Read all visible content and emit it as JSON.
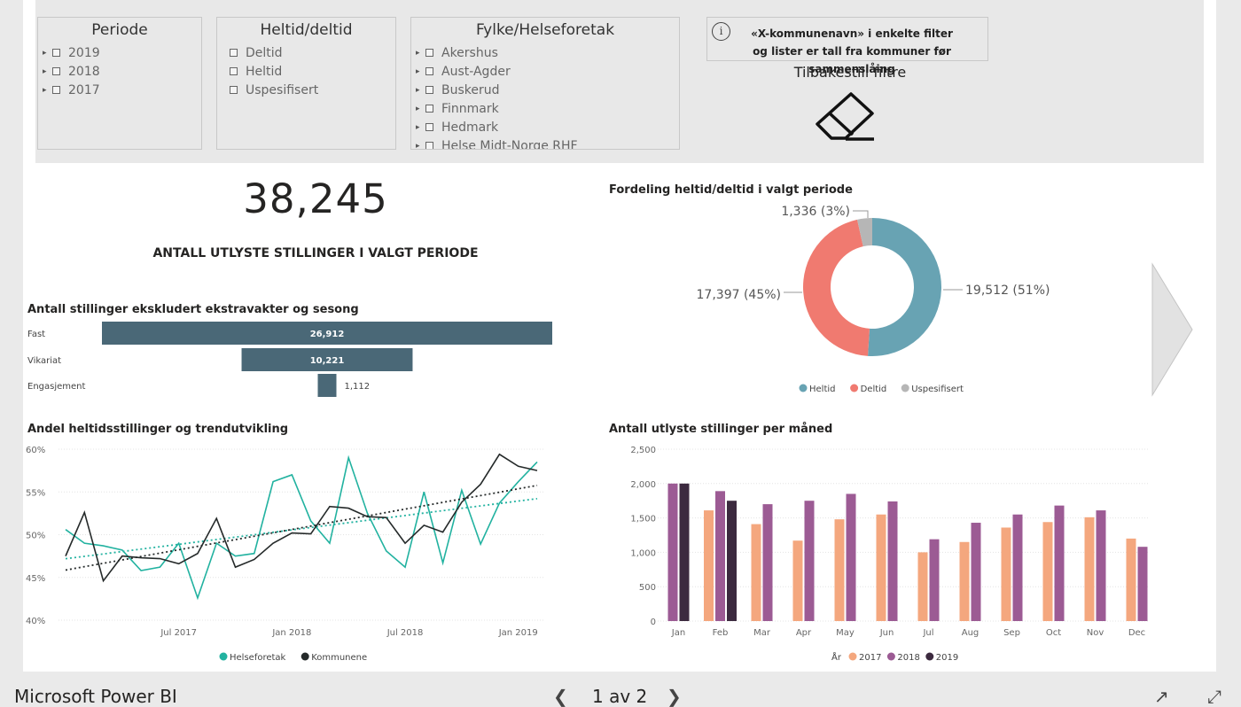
{
  "filters": {
    "periode": {
      "title": "Periode",
      "items": [
        "2019",
        "2018",
        "2017"
      ]
    },
    "heltid": {
      "title": "Heltid/deltid",
      "items": [
        "Deltid",
        "Heltid",
        "Uspesifisert"
      ]
    },
    "fylke": {
      "title": "Fylke/Helseforetak",
      "items": [
        "Akershus",
        "Aust-Agder",
        "Buskerud",
        "Finnmark",
        "Hedmark",
        "Helse Midt-Norge RHF"
      ]
    },
    "notice": {
      "line1": "«X-kommunenavn» i enkelte filter",
      "line2": "og lister er tall fra kommuner før sammenslåing"
    },
    "reset_label": "Tilbakestill filtre",
    "icons": {
      "info": "info-circle-icon",
      "reset": "eraser-icon",
      "expand": "chevron-right-icon"
    }
  },
  "kpi": {
    "value": "38,245",
    "label": "ANTALL UTLYSTE STILLINGER I VALGT PERIODE"
  },
  "titles": {
    "bar": "Antall stillinger ekskludert ekstravakter og sesong",
    "donut": "Fordeling heltid/deltid i valgt periode",
    "line": "Andel heltidsstillinger og trendutvikling",
    "monthly": "Antall utlyste stillinger per måned"
  },
  "statusbar": {
    "app": "Microsoft Power BI",
    "page": "1 av 2",
    "prev_icon": "chevron-left-icon",
    "next_icon": "chevron-right-icon",
    "share_icon": "share-icon",
    "fullscreen_icon": "expand-icon"
  },
  "colors": {
    "bar": "#4a6877",
    "heltid": "#68a3b3",
    "deltid": "#f07a70",
    "uspesifisert": "#b6b6b6",
    "helseforetak": "#22b2a0",
    "kommunene": "#252a2a",
    "y2017": "#f4a77e",
    "y2018": "#9c5b94",
    "y2019": "#3c2a3f"
  },
  "chart_data": [
    {
      "type": "bar",
      "orientation": "horizontal",
      "categories": [
        "Fast",
        "Vikariat",
        "Engasjement"
      ],
      "values": [
        26912,
        10221,
        1112
      ],
      "value_labels": [
        "26,912",
        "10,221",
        "1,112"
      ]
    },
    {
      "type": "pie",
      "donut": true,
      "labels": [
        "Heltid",
        "Deltid",
        "Uspesifisert"
      ],
      "values": [
        19512,
        17397,
        1336
      ],
      "data_labels": [
        "19,512 (51%)",
        "17,397 (45%)",
        "1,336 (3%)"
      ],
      "legend": "bottom"
    },
    {
      "type": "line",
      "x": [
        "2017-01",
        "2017-02",
        "2017-03",
        "2017-04",
        "2017-05",
        "2017-06",
        "2017-07",
        "2017-08",
        "2017-09",
        "2017-10",
        "2017-11",
        "2017-12",
        "2018-01",
        "2018-02",
        "2018-03",
        "2018-04",
        "2018-05",
        "2018-06",
        "2018-07",
        "2018-08",
        "2018-09",
        "2018-10",
        "2018-11",
        "2018-12",
        "2019-01",
        "2019-02"
      ],
      "xticks": [
        "Jul 2017",
        "Jan 2018",
        "Jul 2018",
        "Jan 2019"
      ],
      "xtick_x": [
        "2017-07",
        "2018-01",
        "2018-07",
        "2019-01"
      ],
      "yticks": [
        "60%",
        "55%",
        "50%",
        "45%",
        "40%"
      ],
      "ylim": [
        40,
        60
      ],
      "series": [
        {
          "name": "Helseforetak",
          "values": [
            50.6,
            49.0,
            48.7,
            48.2,
            45.8,
            46.2,
            49.0,
            42.6,
            49.0,
            47.5,
            47.8,
            56.2,
            57.0,
            51.6,
            49.0,
            59.0,
            52.5,
            48.1,
            46.2,
            55.0,
            46.7,
            55.2,
            48.9,
            53.7,
            56.2,
            58.5
          ]
        },
        {
          "name": "Kommunene",
          "values": [
            47.5,
            52.6,
            44.6,
            47.5,
            47.3,
            47.2,
            46.6,
            47.8,
            51.9,
            46.2,
            47.1,
            49.0,
            50.2,
            50.1,
            53.3,
            53.1,
            52.1,
            52.0,
            49.0,
            51.1,
            50.3,
            53.8,
            55.9,
            59.4,
            58.0,
            57.5
          ]
        }
      ],
      "trendlines": true,
      "legend": "bottom",
      "grid": true
    },
    {
      "type": "bar",
      "categories": [
        "Jan",
        "Feb",
        "Mar",
        "Apr",
        "May",
        "Jun",
        "Jul",
        "Aug",
        "Sep",
        "Oct",
        "Nov",
        "Dec"
      ],
      "legend_title": "År",
      "series": [
        {
          "name": "2017",
          "values": [
            null,
            1610,
            1410,
            1170,
            1480,
            1550,
            1000,
            1150,
            1360,
            1440,
            1510,
            1200
          ]
        },
        {
          "name": "2018",
          "values": [
            2000,
            1890,
            1700,
            1750,
            1850,
            1740,
            1190,
            1430,
            1550,
            1680,
            1610,
            1080
          ]
        },
        {
          "name": "2019",
          "values": [
            2000,
            1750,
            null,
            null,
            null,
            null,
            null,
            null,
            null,
            null,
            null,
            null
          ]
        }
      ],
      "yticks": [
        "2,500",
        "2,000",
        "1,500",
        "1,000",
        "500",
        "0"
      ],
      "ylim": [
        0,
        2500
      ],
      "legend": "bottom",
      "grid": true
    }
  ]
}
